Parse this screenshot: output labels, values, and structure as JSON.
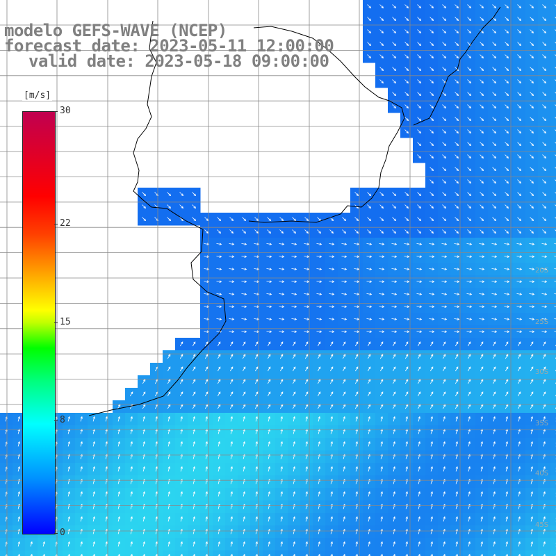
{
  "title": {
    "line1": "modelo GEFS-WAVE (NCEP)",
    "line2": "forecast date: 2023-05-11 12:00:00",
    "line3": "valid date: 2023-05-18 09:00:00"
  },
  "legend": {
    "unit": "[m/s]",
    "ticks": [
      {
        "label": "30",
        "value": 30
      },
      {
        "label": "22",
        "value": 22
      },
      {
        "label": "15",
        "value": 15
      },
      {
        "label": "8",
        "value": 8
      },
      {
        "label": "0",
        "value": 0
      }
    ],
    "min": 0,
    "max": 30
  },
  "map": {
    "ocean_color_low": "#1060f0",
    "ocean_color_high": "#30e8f0",
    "land_color": "#ffffff",
    "grid_color": "#888888",
    "coast_color": "#000000",
    "vector_color": "#ffffff",
    "edge_labels": [
      "45S",
      "40S",
      "35S",
      "30S",
      "25S",
      "20S"
    ]
  }
}
